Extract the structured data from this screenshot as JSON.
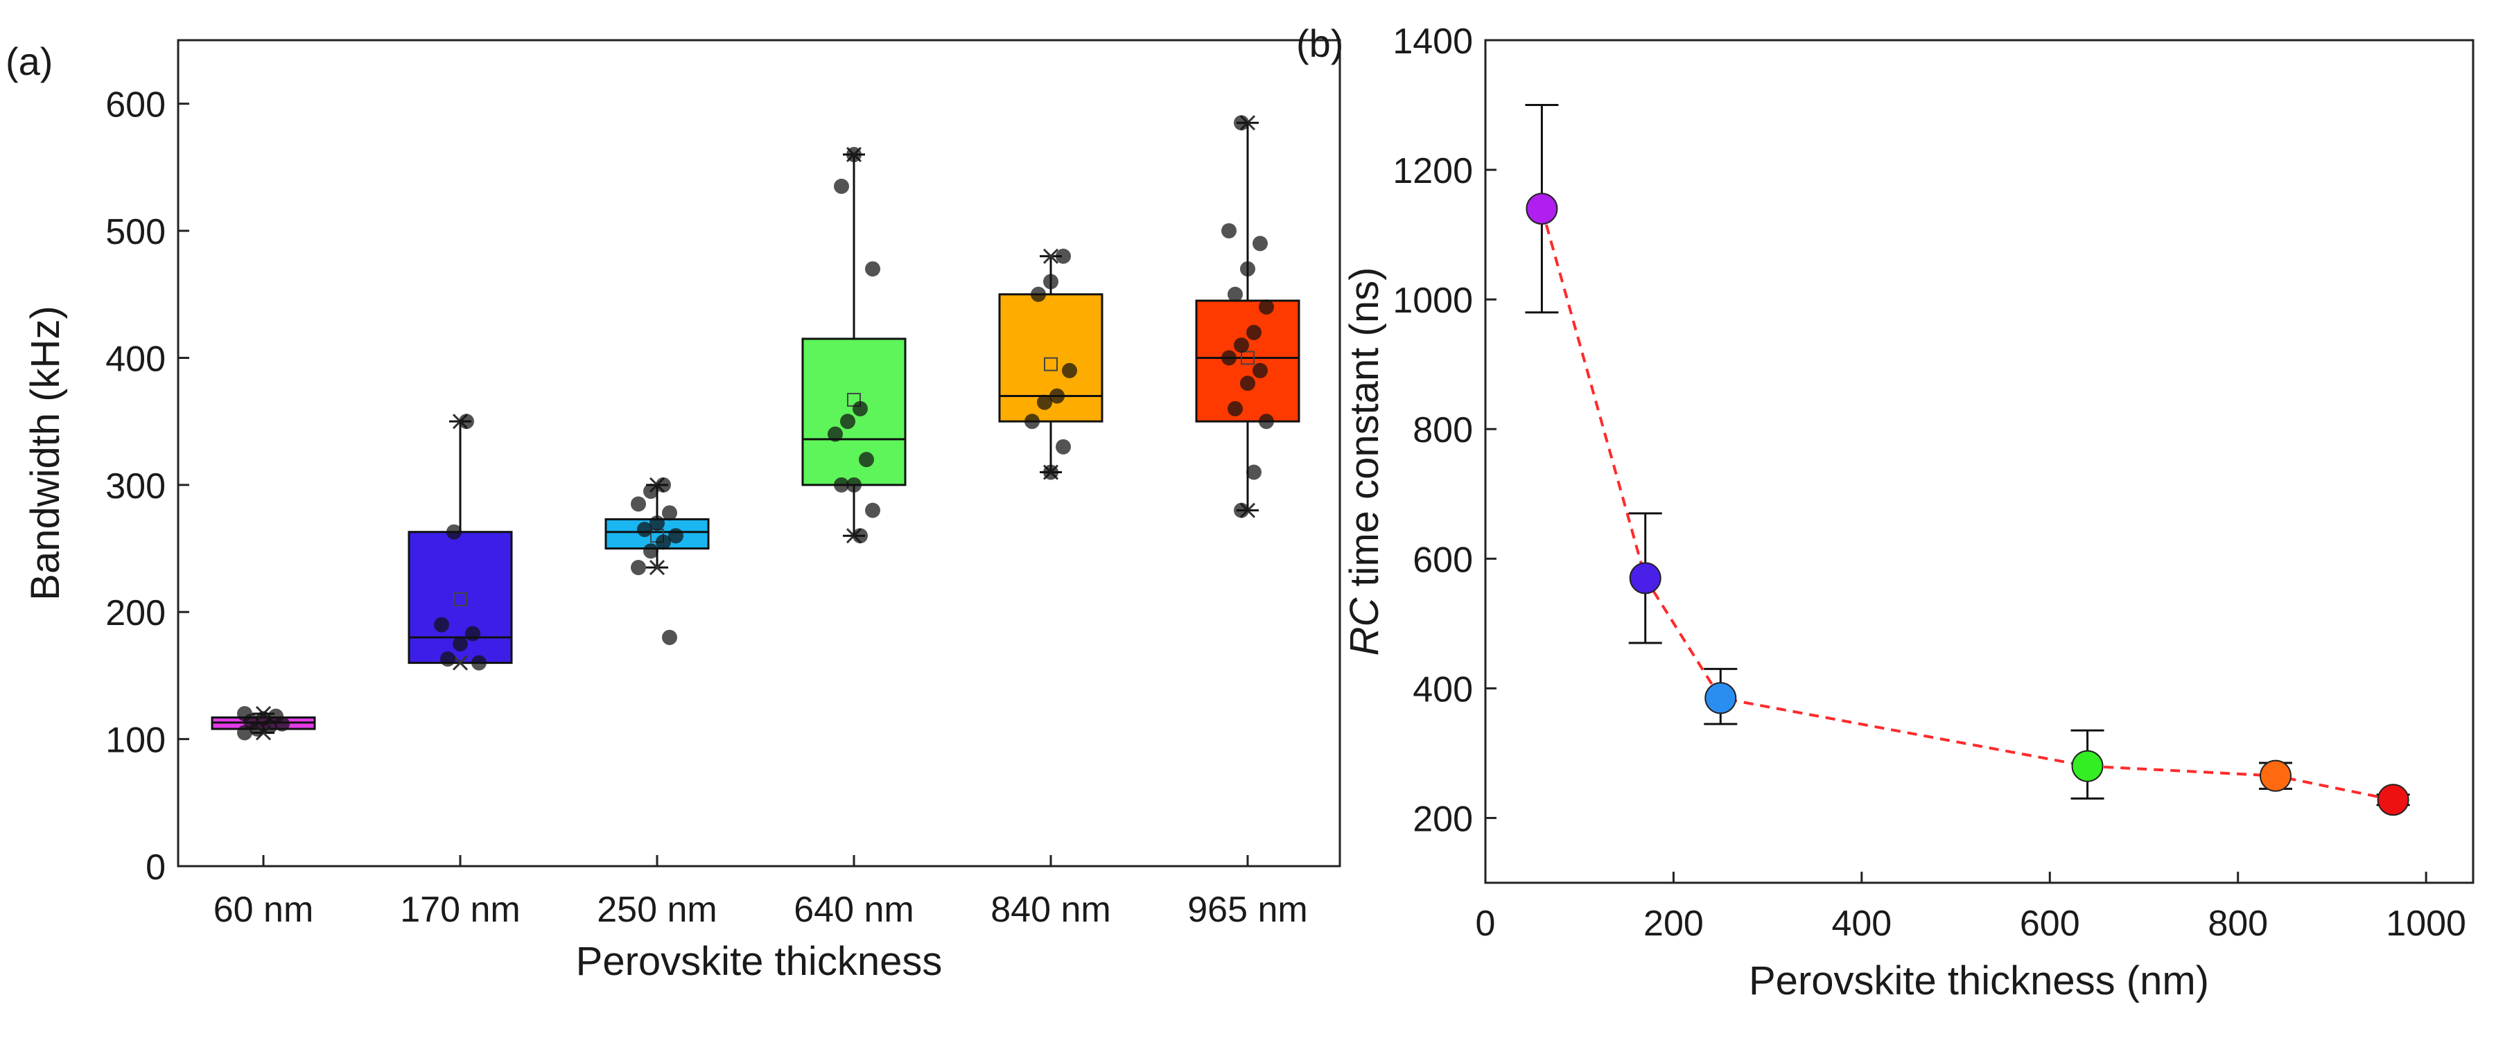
{
  "chart_data": [
    {
      "panel_label": "(a)",
      "type": "box",
      "title": "",
      "xlabel": "Perovskite thickness",
      "ylabel": "Bandwidth (kHz)",
      "ylim": [
        0,
        650
      ],
      "yticks": [
        0,
        100,
        200,
        300,
        400,
        500,
        600
      ],
      "categories": [
        "60 nm",
        "170 nm",
        "250 nm",
        "640 nm",
        "840 nm",
        "965 nm"
      ],
      "colors": [
        "#e23ce6",
        "#3b1fe8",
        "#19b6f2",
        "#5df55a",
        "#ffac00",
        "#ff3a00"
      ],
      "boxes": [
        {
          "q1": 108,
          "median": 113,
          "q3": 117,
          "mean": 113,
          "whisker_low": 105,
          "whisker_high": 120,
          "points": [
            105,
            108,
            110,
            112,
            114,
            116,
            118,
            120
          ]
        },
        {
          "q1": 160,
          "median": 180,
          "q3": 263,
          "mean": 210,
          "whisker_low": 160,
          "whisker_high": 350,
          "points": [
            160,
            163,
            175,
            183,
            190,
            263,
            350
          ]
        },
        {
          "q1": 250,
          "median": 263,
          "q3": 273,
          "mean": 260,
          "whisker_low": 235,
          "whisker_high": 300,
          "points": [
            180,
            235,
            248,
            255,
            260,
            265,
            270,
            278,
            285,
            295,
            300
          ]
        },
        {
          "q1": 300,
          "median": 336,
          "q3": 415,
          "mean": 367,
          "whisker_low": 260,
          "whisker_high": 560,
          "points": [
            260,
            280,
            300,
            300,
            320,
            340,
            350,
            360,
            470,
            535,
            560
          ]
        },
        {
          "q1": 350,
          "median": 370,
          "q3": 450,
          "mean": 395,
          "whisker_low": 310,
          "whisker_high": 480,
          "points": [
            310,
            330,
            350,
            365,
            370,
            390,
            450,
            460,
            480
          ]
        },
        {
          "q1": 350,
          "median": 400,
          "q3": 445,
          "mean": 400,
          "whisker_low": 280,
          "whisker_high": 585,
          "points": [
            280,
            310,
            350,
            360,
            380,
            390,
            400,
            410,
            420,
            440,
            450,
            470,
            490,
            500,
            585
          ]
        }
      ]
    },
    {
      "panel_label": "(b)",
      "type": "scatter",
      "title": "",
      "xlabel": "Perovskite thickness (nm)",
      "ylabel_italic": "RC",
      "ylabel_rest": " time constant (ns)",
      "xlim": [
        0,
        1050
      ],
      "ylim": [
        100,
        1400
      ],
      "xticks": [
        0,
        200,
        400,
        600,
        800,
        1000
      ],
      "yticks": [
        200,
        400,
        600,
        800,
        1000,
        1200,
        1400
      ],
      "line_style": "dashed",
      "line_color": "#ff2a2a",
      "points": [
        {
          "x": 60,
          "y": 1140,
          "err_low": 980,
          "err_high": 1300,
          "color": "#b01ef0"
        },
        {
          "x": 170,
          "y": 570,
          "err_low": 470,
          "err_high": 670,
          "color": "#4a1fe8"
        },
        {
          "x": 250,
          "y": 385,
          "err_low": 345,
          "err_high": 430,
          "color": "#2a8ef0"
        },
        {
          "x": 640,
          "y": 280,
          "err_low": 230,
          "err_high": 335,
          "color": "#33ee22"
        },
        {
          "x": 840,
          "y": 265,
          "err_low": 245,
          "err_high": 285,
          "color": "#ff6a10"
        },
        {
          "x": 965,
          "y": 228,
          "err_low": 220,
          "err_high": 236,
          "color": "#ee1111"
        }
      ]
    }
  ]
}
